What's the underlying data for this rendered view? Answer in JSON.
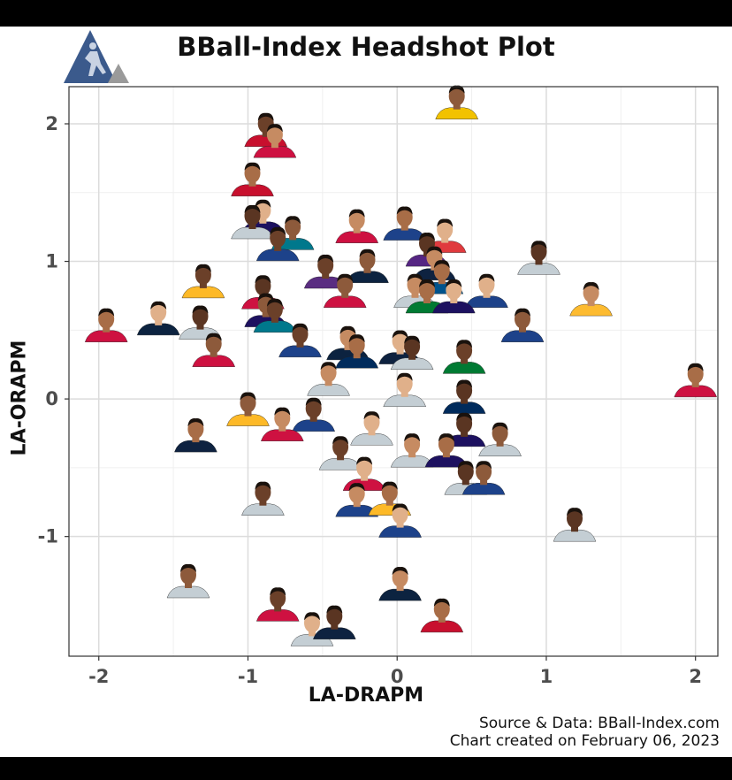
{
  "title": "BBall-Index Headshot Plot",
  "caption": {
    "source": "Source & Data: BBall-Index.com",
    "created": "Chart created on February 06, 2023"
  },
  "colors": {
    "background": "#ffffff",
    "gridMajor": "#dcdcdc",
    "gridMinor": "#efefef",
    "panelBorder": "#333333",
    "logoBlue": "#3b5a8c",
    "logoGray": "#9a9a9a"
  },
  "chart_data": {
    "type": "scatter",
    "title": "BBall-Index Headshot Plot",
    "xlabel": "LA-DRAPM",
    "ylabel": "LA-ORAPM",
    "xlim": [
      -2.2,
      2.15
    ],
    "ylim": [
      -1.87,
      2.27
    ],
    "xticks": [
      -2,
      -1,
      0,
      1,
      2
    ],
    "yticks": [
      -1,
      0,
      1,
      2
    ],
    "xtick_labels": [
      "-2",
      "-1",
      "0",
      "1",
      "2"
    ],
    "ytick_labels": [
      "-1",
      "0",
      "1",
      "2"
    ],
    "grid": true,
    "marker": "player-headshot",
    "points": [
      {
        "x": 0.4,
        "y": 2.15,
        "jersey": "#f2c200"
      },
      {
        "x": -0.88,
        "y": 1.95,
        "jersey": "#c8102e"
      },
      {
        "x": -0.82,
        "y": 1.87,
        "jersey": "#ce1141"
      },
      {
        "x": -0.97,
        "y": 1.59,
        "jersey": "#c8102e"
      },
      {
        "x": -0.9,
        "y": 1.32,
        "jersey": "#1d1160"
      },
      {
        "x": -0.97,
        "y": 1.28,
        "jersey": "#c4ced4"
      },
      {
        "x": -0.7,
        "y": 1.2,
        "jersey": "#00788c"
      },
      {
        "x": -0.8,
        "y": 1.12,
        "jersey": "#1d428a"
      },
      {
        "x": -0.27,
        "y": 1.25,
        "jersey": "#ce1141"
      },
      {
        "x": 0.05,
        "y": 1.27,
        "jersey": "#1d428a"
      },
      {
        "x": 0.32,
        "y": 1.18,
        "jersey": "#e03a3e"
      },
      {
        "x": 0.2,
        "y": 1.08,
        "jersey": "#552583"
      },
      {
        "x": -0.2,
        "y": 0.96,
        "jersey": "#0c2340"
      },
      {
        "x": -0.48,
        "y": 0.92,
        "jersey": "#5a2d81"
      },
      {
        "x": 0.25,
        "y": 0.98,
        "jersey": "#0e2240"
      },
      {
        "x": 0.3,
        "y": 0.88,
        "jersey": "#00538c"
      },
      {
        "x": 0.6,
        "y": 0.78,
        "jersey": "#1d428a"
      },
      {
        "x": 0.95,
        "y": 1.02,
        "jersey": "#c4ced4"
      },
      {
        "x": -0.35,
        "y": 0.78,
        "jersey": "#ce1141"
      },
      {
        "x": -1.3,
        "y": 0.85,
        "jersey": "#fdb927"
      },
      {
        "x": 0.12,
        "y": 0.78,
        "jersey": "#c4ced4"
      },
      {
        "x": 0.2,
        "y": 0.74,
        "jersey": "#007a33"
      },
      {
        "x": 0.38,
        "y": 0.74,
        "jersey": "#1d1160"
      },
      {
        "x": -0.9,
        "y": 0.77,
        "jersey": "#ce1141"
      },
      {
        "x": -0.88,
        "y": 0.64,
        "jersey": "#1d1160"
      },
      {
        "x": -0.82,
        "y": 0.6,
        "jersey": "#00788c"
      },
      {
        "x": 1.3,
        "y": 0.72,
        "jersey": "#fdbb30"
      },
      {
        "x": -1.95,
        "y": 0.53,
        "jersey": "#ce1141"
      },
      {
        "x": -1.6,
        "y": 0.58,
        "jersey": "#0c2340"
      },
      {
        "x": -1.32,
        "y": 0.55,
        "jersey": "#c4ced4"
      },
      {
        "x": 0.84,
        "y": 0.53,
        "jersey": "#1d428a"
      },
      {
        "x": -0.65,
        "y": 0.42,
        "jersey": "#1d428a"
      },
      {
        "x": -0.33,
        "y": 0.4,
        "jersey": "#0c2340"
      },
      {
        "x": -0.27,
        "y": 0.34,
        "jersey": "#002b5c"
      },
      {
        "x": 0.02,
        "y": 0.37,
        "jersey": "#0e2240"
      },
      {
        "x": 0.1,
        "y": 0.33,
        "jersey": "#c4ced4"
      },
      {
        "x": -1.23,
        "y": 0.35,
        "jersey": "#ce1141"
      },
      {
        "x": 0.45,
        "y": 0.3,
        "jersey": "#007a33"
      },
      {
        "x": -0.46,
        "y": 0.14,
        "jersey": "#c4ced4"
      },
      {
        "x": 2.0,
        "y": 0.13,
        "jersey": "#ce1141"
      },
      {
        "x": 0.05,
        "y": 0.06,
        "jersey": "#c4ced4"
      },
      {
        "x": 0.45,
        "y": 0.01,
        "jersey": "#002b5c"
      },
      {
        "x": -1.0,
        "y": -0.08,
        "jersey": "#fdb927"
      },
      {
        "x": -0.56,
        "y": -0.12,
        "jersey": "#1d428a"
      },
      {
        "x": -0.77,
        "y": -0.19,
        "jersey": "#ce1141"
      },
      {
        "x": -1.35,
        "y": -0.27,
        "jersey": "#0e2240"
      },
      {
        "x": -0.17,
        "y": -0.22,
        "jersey": "#c4ced4"
      },
      {
        "x": 0.45,
        "y": -0.23,
        "jersey": "#1d1160"
      },
      {
        "x": 0.69,
        "y": -0.3,
        "jersey": "#c4ced4"
      },
      {
        "x": -0.38,
        "y": -0.4,
        "jersey": "#c4ced4"
      },
      {
        "x": 0.1,
        "y": -0.38,
        "jersey": "#c4ced4"
      },
      {
        "x": 0.33,
        "y": -0.38,
        "jersey": "#1d1160"
      },
      {
        "x": -0.22,
        "y": -0.55,
        "jersey": "#ce1141"
      },
      {
        "x": 0.46,
        "y": -0.58,
        "jersey": "#c4ced4"
      },
      {
        "x": 0.58,
        "y": -0.58,
        "jersey": "#1d428a"
      },
      {
        "x": -0.9,
        "y": -0.73,
        "jersey": "#c4ced4"
      },
      {
        "x": -0.27,
        "y": -0.74,
        "jersey": "#1d428a"
      },
      {
        "x": -0.05,
        "y": -0.73,
        "jersey": "#fdb927"
      },
      {
        "x": 0.02,
        "y": -0.89,
        "jersey": "#1d428a"
      },
      {
        "x": 1.19,
        "y": -0.92,
        "jersey": "#c4ced4"
      },
      {
        "x": -1.4,
        "y": -1.33,
        "jersey": "#c4ced4"
      },
      {
        "x": -0.8,
        "y": -1.5,
        "jersey": "#ce1141"
      },
      {
        "x": 0.02,
        "y": -1.35,
        "jersey": "#0c2340"
      },
      {
        "x": 0.3,
        "y": -1.58,
        "jersey": "#c8102e"
      },
      {
        "x": -0.57,
        "y": -1.68,
        "jersey": "#c4ced4"
      },
      {
        "x": -0.42,
        "y": -1.63,
        "jersey": "#0e2240"
      }
    ]
  }
}
